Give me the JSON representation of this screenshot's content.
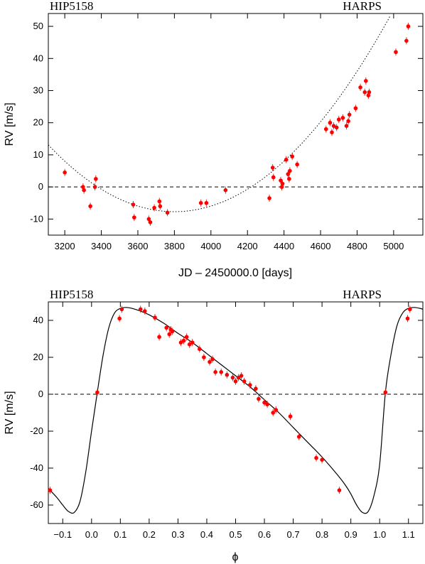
{
  "chart_data": [
    {
      "type": "scatter",
      "title_left": "HIP5158",
      "title_right": "HARPS",
      "xlabel": "JD – 2450000.0 [days]",
      "ylabel": "RV [m/s]",
      "xlim": [
        3110,
        5160
      ],
      "ylim": [
        -15,
        54
      ],
      "xticks": [
        3200,
        3400,
        3600,
        3800,
        4000,
        4200,
        4400,
        4600,
        4800,
        5000
      ],
      "yticks": [
        -10,
        0,
        10,
        20,
        30,
        40,
        50
      ],
      "zero_line": "dashed",
      "trend_curve": {
        "style": "dotted",
        "type": "quadratic",
        "vertex_x": 3800,
        "vertex_y": -7.7,
        "a": 4.37e-05
      },
      "series": [
        {
          "x": [
            3200,
            3300,
            3305,
            3340,
            3365,
            3370,
            3575,
            3580,
            3660,
            3668,
            3690,
            3718,
            3722,
            3762,
            3945,
            3975,
            4080,
            4320,
            4338,
            4342,
            4382,
            4388,
            4392,
            4412,
            4422,
            4428,
            4432,
            4445,
            4472,
            4630,
            4652,
            4662,
            4672,
            4688,
            4700,
            4722,
            4742,
            4752,
            4758,
            4792,
            4818,
            4842,
            4848,
            4862,
            4866,
            5012,
            5070,
            5080
          ],
          "y": [
            4.5,
            0,
            -1,
            -6,
            0,
            2.5,
            -5.5,
            -9.5,
            -10,
            -11,
            -6.5,
            -4.5,
            -6,
            -8,
            -5,
            -5,
            -1,
            -3.5,
            6,
            3,
            2,
            0,
            1,
            8.5,
            4,
            2.5,
            5,
            9.5,
            7,
            18,
            20,
            17,
            19,
            18.5,
            21,
            21.5,
            19,
            20.5,
            22.5,
            24.5,
            31,
            29.5,
            33,
            28.5,
            29.5,
            42,
            45.5,
            50
          ]
        }
      ]
    },
    {
      "type": "scatter",
      "title_left": "HIP5158",
      "title_right": "HARPS",
      "xlabel": "ϕ",
      "ylabel": "RV [m/s]",
      "xlim": [
        -0.15,
        1.15
      ],
      "ylim": [
        -70,
        50
      ],
      "xticks": [
        -0.1,
        0,
        0.1,
        0.2,
        0.3,
        0.4,
        0.5,
        0.6,
        0.7,
        0.8,
        0.9,
        1,
        1.1
      ],
      "xtick_labels": [
        "−0.1",
        "0.0",
        "0.1",
        "0.2",
        "0.3",
        "0.4",
        "0.5",
        "0.6",
        "0.7",
        "0.8",
        "0.9",
        "1.0",
        "1.1"
      ],
      "yticks": [
        -60,
        -40,
        -20,
        0,
        20,
        40
      ],
      "zero_line": "dashed",
      "model_curve": {
        "style": "solid",
        "phase": [
          -0.15,
          -0.12,
          -0.1,
          -0.08,
          -0.06,
          -0.04,
          -0.02,
          0,
          0.02,
          0.04,
          0.06,
          0.08,
          0.1,
          0.12,
          0.14,
          0.17,
          0.2,
          0.25,
          0.3,
          0.35,
          0.4,
          0.45,
          0.5,
          0.55,
          0.6,
          0.65,
          0.7,
          0.75,
          0.8,
          0.85,
          0.88,
          0.9,
          0.92,
          0.94,
          0.96,
          0.98,
          1,
          1.02,
          1.04,
          1.06,
          1.08,
          1.1,
          1.12,
          1.14,
          1.15
        ],
        "rv": [
          -51,
          -56,
          -60,
          -63.5,
          -64,
          -58,
          -42,
          -20,
          1,
          21,
          36,
          44,
          46.5,
          47,
          46.5,
          45,
          43,
          38.5,
          33,
          28,
          22,
          16,
          10,
          4,
          -3,
          -10,
          -18,
          -26,
          -34,
          -43,
          -49,
          -54,
          -60,
          -64,
          -63.5,
          -55,
          -38,
          1,
          22,
          37,
          44,
          46.5,
          47,
          46.5,
          46
        ]
      },
      "series": [
        {
          "x": [
            -0.144,
            0.02,
            0.097,
            0.105,
            0.17,
            0.185,
            0.22,
            0.235,
            0.26,
            0.27,
            0.275,
            0.28,
            0.31,
            0.32,
            0.33,
            0.34,
            0.35,
            0.375,
            0.39,
            0.41,
            0.42,
            0.43,
            0.45,
            0.47,
            0.49,
            0.5,
            0.51,
            0.52,
            0.53,
            0.55,
            0.57,
            0.58,
            0.6,
            0.61,
            0.63,
            0.64,
            0.69,
            0.72,
            0.78,
            0.8,
            0.86,
            1.02,
            1.097,
            1.105
          ],
          "y": [
            -52,
            1,
            41,
            46,
            46,
            45,
            41.5,
            31,
            36,
            32.5,
            35,
            34,
            28,
            29,
            31,
            27,
            28,
            24.5,
            20,
            17.5,
            19,
            12,
            12,
            10.5,
            9,
            7,
            9,
            10,
            7,
            5,
            3,
            -2.5,
            -4.5,
            -5.5,
            -10,
            -8.5,
            -12,
            -23,
            -34.5,
            -35.5,
            -52,
            1,
            41,
            46
          ]
        }
      ]
    }
  ]
}
